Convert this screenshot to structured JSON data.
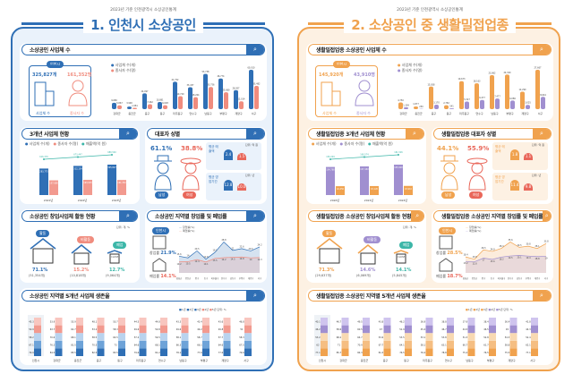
{
  "header": {
    "subtitle": "2023년 기준 인천광역시 소상공인통계"
  },
  "colors": {
    "blue": "#2f6fb5",
    "red": "#f08c7e",
    "orange": "#f0a24e",
    "purple": "#a08fd0",
    "teal": "#3cb6a8"
  },
  "districts": [
    "강화군",
    "옹진군",
    "중구",
    "동구",
    "미추홀구",
    "연수구",
    "남동구",
    "부평구",
    "계양구",
    "서구"
  ],
  "survival_regions": [
    "인천시",
    "강화군",
    "옹진군",
    "중구",
    "동구",
    "미추홀구",
    "연수구",
    "남동구",
    "부평구",
    "계양구",
    "서구"
  ],
  "survival_legend": [
    "1년",
    "2년",
    "3년",
    "4년",
    "5년"
  ],
  "unit_pct": "단위: %",
  "unit_cnt": "단위: 개, %",
  "left": {
    "title": "1. 인천시 소상공인",
    "s1": {
      "title": "소상공인 사업체 수",
      "city": "인천시",
      "biz": "325,827개",
      "workers": "161,352명",
      "biz_label": "사업체 수",
      "worker_label": "종사자 수",
      "legend": [
        "사업체 수(개)",
        "종사자 수(명)"
      ]
    },
    "s2": {
      "title": "3개년 사업체 현황",
      "legend": [
        "사업체 수(개)",
        "종사자 수(명)",
        "매출액(억 원)"
      ],
      "years": [
        "2021년",
        "2022년",
        "2023년"
      ]
    },
    "s3": {
      "title": "대표자 성별",
      "male_pct": "61.1%",
      "female_pct": "38.8%",
      "male": "남성",
      "female": "여성",
      "card1": "평균 매출액",
      "card2": "평균 영업기간",
      "unit1": "단위: 억 원",
      "unit2": "단위: 년",
      "c1": [
        "2.4",
        "1.5"
      ],
      "c2": [
        "12.8",
        "10.0"
      ]
    },
    "s4": {
      "title": "소상공인 창업사업체 활동 현황",
      "items": [
        {
          "tag": "활동",
          "pct": "71.1%",
          "cnt": "(51,354개)"
        },
        {
          "tag": "비활동",
          "pct": "15.2%",
          "cnt": "(10,818개)"
        },
        {
          "tag": "폐업",
          "pct": "12.7%",
          "cnt": "(9,064개)"
        }
      ],
      "sign": "CLOSE"
    },
    "s5": {
      "title": "소상공인 지역별 창업률 및 폐업률",
      "city": "인천시",
      "open_label": "창업률",
      "open": "21.9%",
      "close_label": "폐업률",
      "close": "14.1%",
      "legend": [
        "창업률(%)",
        "폐업률(%)"
      ]
    },
    "s6": {
      "title": "소상공인 지역별 5개년 사업체 생존율"
    }
  },
  "right": {
    "title": "2. 소상공인 중 생활밀접업종",
    "s1": {
      "title": "생활밀접업종 소상공인 사업체 수",
      "city": "인천시",
      "biz": "145,920개",
      "workers": "43,910명",
      "biz_label": "사업체 수",
      "worker_label": "종사자 수",
      "legend": [
        "사업체 수(개)",
        "종사자 수(명)"
      ]
    },
    "s2": {
      "title": "생활밀접업종 3개년 사업체 현황",
      "legend": [
        "사업체 수(개)",
        "종사자 수(명)",
        "매출액(억 원)"
      ],
      "years": [
        "2020년",
        "2021년",
        "2022년"
      ]
    },
    "s3": {
      "title": "생활밀접업종 대표자 성별",
      "male_pct": "44.1%",
      "female_pct": "55.9%",
      "male": "남성",
      "female": "여성",
      "card1": "평균 매출액",
      "card2": "평균 영업기간",
      "unit1": "단위: 억 원",
      "unit2": "단위: 년",
      "c1": [
        "1.8",
        "1.1"
      ],
      "c2": [
        "11.4",
        "9.8"
      ]
    },
    "s4": {
      "title": "생활밀접업종 소상공인 창업사업체 활동 현황",
      "items": [
        {
          "tag": "활동",
          "pct": "71.3%",
          "cnt": "(29,637개)"
        },
        {
          "tag": "비활동",
          "pct": "14.6%",
          "cnt": "(6,069개)"
        },
        {
          "tag": "폐업",
          "pct": "14.1%",
          "cnt": "(5,845개)"
        }
      ],
      "sign": "CLOSE"
    },
    "s5": {
      "title": "생활밀접업종 소상공인 지역별 창업률 및 폐업률",
      "city": "인천시",
      "open_label": "창업률",
      "open": "28.5%",
      "close_label": "폐업률",
      "close": "18.7%",
      "legend": [
        "창업률(%)",
        "폐업률(%)"
      ]
    },
    "s6": {
      "title": "생활밀접업종 소상공인 지역별 5개년 사업체 생존율"
    }
  },
  "chart_data": [
    {
      "id": "left-district",
      "type": "bar",
      "categories": [
        "강화군",
        "옹진군",
        "중구",
        "동구",
        "미추홀구",
        "연수구",
        "남동구",
        "부평구",
        "계양구",
        "서구"
      ],
      "series": [
        {
          "name": "사업체 수(개)",
          "values": [
            9680,
            3990,
            24097,
            10881,
            41752,
            33437,
            53738,
            46774,
            28957,
            60010
          ]
        },
        {
          "name": "종사자 수(명)",
          "values": [
            5867,
            1981,
            7462,
            6028,
            19720,
            18264,
            33756,
            25680,
            12014,
            35482
          ]
        }
      ]
    },
    {
      "id": "right-district",
      "type": "bar",
      "categories": [
        "강화군",
        "옹진군",
        "중구",
        "동구",
        "미추홀구",
        "연수구",
        "남동구",
        "부평구",
        "계양구",
        "서구"
      ],
      "series": [
        {
          "name": "사업체 수(개)",
          "values": [
            4750,
            1877,
            15838,
            2782,
            19673,
            18163,
            23862,
            24320,
            12290,
            27667
          ]
        },
        {
          "name": "종사자 수(명)",
          "values": [
            1309,
            250,
            3170,
            541,
            5327,
            6477,
            7477,
            6086,
            3025,
            8644
          ]
        }
      ]
    },
    {
      "id": "left-3yr",
      "type": "bar",
      "categories": [
        "2021년",
        "2022년",
        "2023년"
      ],
      "series": [
        {
          "name": "사업체 수(개)",
          "values": [
            283775,
            312154,
            325827
          ]
        },
        {
          "name": "종사자 수(명)",
          "values": [
            157680,
            163025,
            161352
          ]
        },
        {
          "name": "매출액(억 원)",
          "values": [
            616370,
            673447,
            680540
          ]
        }
      ]
    },
    {
      "id": "right-3yr",
      "type": "bar",
      "categories": [
        "2020년",
        "2021년",
        "2022년"
      ],
      "series": [
        {
          "name": "사업체 수(개)",
          "values": [
            134780,
            137463,
            145920
          ]
        },
        {
          "name": "종사자 수(명)",
          "values": [
            42456,
            43120,
            43910
          ]
        },
        {
          "name": "매출액(억 원)",
          "values": [
            150294,
            160574,
            161526
          ]
        }
      ]
    },
    {
      "id": "left-rate",
      "type": "line",
      "categories": [
        "강화군",
        "옹진군",
        "중구",
        "동구",
        "미추홀구",
        "연수구",
        "남동구",
        "부평구",
        "계양구",
        "서구"
      ],
      "series": [
        {
          "name": "창업률(%)",
          "values": [
            15.6,
            14.0,
            20.5,
            12.8,
            19.1,
            28.8,
            21.0,
            22.6,
            20.5,
            24.2
          ]
        },
        {
          "name": "폐업률(%)",
          "values": [
            10.2,
            10.5,
            12.4,
            10.1,
            13.5,
            14.2,
            14.5,
            14.8,
            14.0,
            14.3
          ]
        }
      ]
    },
    {
      "id": "right-rate",
      "type": "line",
      "categories": [
        "강화군",
        "옹진군",
        "중구",
        "동구",
        "미추홀구",
        "연수구",
        "남동구",
        "부평구",
        "계양구",
        "서구"
      ],
      "series": [
        {
          "name": "창업률(%)",
          "values": [
            18.4,
            15.8,
            26.5,
            24.8,
            28.3,
            35.6,
            29.5,
            30.8,
            28.1,
            33.8
          ]
        },
        {
          "name": "폐업률(%)",
          "values": [
            13.2,
            12.8,
            17.0,
            15.6,
            18.2,
            19.5,
            20.1,
            19.4,
            18.8,
            19.0
          ]
        }
      ]
    },
    {
      "id": "left-survival",
      "type": "bar",
      "categories": [
        "인천시",
        "강화군",
        "옹진군",
        "중구",
        "동구",
        "미추홀구",
        "연수구",
        "남동구",
        "부평구",
        "계양구",
        "서구"
      ],
      "series": [
        {
          "name": "1년",
          "values": [
            79.9,
            84.5,
            85.5,
            82.5,
            83.5,
            79.6,
            81.2,
            78.1,
            77.6,
            77.6,
            79.6
          ]
        },
        {
          "name": "2년",
          "values": [
            67.1,
            76.2,
            81.5,
            70.5,
            73.0,
            64.6,
            68.1,
            66.3,
            66.1,
            64.6,
            67.5
          ]
        },
        {
          "name": "3년",
          "values": [
            58.2,
            70.6,
            68.1,
            58.5,
            64.5,
            57.2,
            59.5,
            58.1,
            58.7,
            57.7,
            58.3
          ]
        },
        {
          "name": "4년",
          "values": [
            50.9,
            63.7,
            62.7,
            53.2,
            58.3,
            49.6,
            50.8,
            49.6,
            49.2,
            49.8,
            51.0
          ]
        },
        {
          "name": "5년",
          "values": [
            45.3,
            53.9,
            55.9,
            48.1,
            50.7,
            44.5,
            44.8,
            43.3,
            43.4,
            43.6,
            46.8
          ]
        }
      ]
    },
    {
      "id": "right-survival",
      "type": "bar",
      "categories": [
        "인천시",
        "강화군",
        "옹진군",
        "중구",
        "동구",
        "미추홀구",
        "연수구",
        "남동구",
        "부평구",
        "계양구",
        "서구"
      ],
      "series": [
        {
          "name": "1년",
          "values": [
            77.1,
            85.7,
            84.3,
            81.3,
            76.5,
            76.4,
            78.8,
            75.4,
            76.5,
            75.5,
            77.1
          ]
        },
        {
          "name": "2년",
          "values": [
            62.0,
            71.0,
            70.9,
            67.7,
            64.1,
            58.1,
            63.1,
            60.7,
            61.7,
            58.8,
            62.1
          ]
        },
        {
          "name": "3년",
          "values": [
            53.2,
            68.2,
            64.7,
            53.6,
            53.5,
            53.1,
            53.8,
            51.3,
            52.8,
            54.3,
            52.4
          ]
        },
        {
          "name": "4년",
          "values": [
            46.2,
            58.6,
            60.5,
            47.0,
            51.9,
            45.4,
            46.7,
            44.5,
            46.5,
            45.0,
            44.3
          ]
        },
        {
          "name": "5년",
          "values": [
            40.1,
            46.7,
            49.5,
            43.8,
            46.2,
            36.9,
            38.8,
            37.9,
            38.4,
            36.4,
            41.8
          ]
        }
      ]
    }
  ]
}
